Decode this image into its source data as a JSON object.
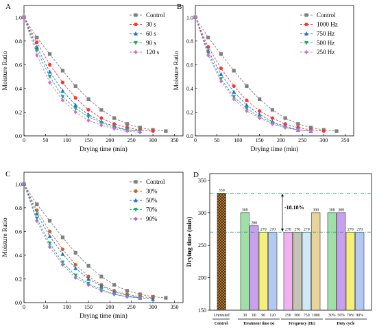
{
  "chart_data": [
    {
      "panel": "A",
      "type": "line",
      "xlabel": "Drying time (min)",
      "ylabel": "Moisture Ratio",
      "xlim": [
        0,
        370
      ],
      "ylim": [
        0,
        1.1
      ],
      "xticks": [
        "0",
        "50",
        "100",
        "150",
        "200",
        "250",
        "300",
        "350"
      ],
      "yticks": [
        "0.0",
        "0.2",
        "0.4",
        "0.6",
        "0.8",
        "1.0"
      ],
      "legend_position": "top-right",
      "series": [
        {
          "name": "Control",
          "color": "#7f7f7f",
          "marker": "square",
          "x": [
            0,
            30,
            60,
            90,
            120,
            150,
            180,
            210,
            240,
            270,
            300,
            330
          ],
          "y": [
            1.0,
            0.83,
            0.69,
            0.55,
            0.42,
            0.31,
            0.22,
            0.15,
            0.1,
            0.07,
            0.05,
            0.04
          ]
        },
        {
          "name": "30 s",
          "color": "#ff3030",
          "marker": "circle",
          "x": [
            0,
            30,
            60,
            90,
            120,
            150,
            180,
            210,
            240,
            270,
            300
          ],
          "y": [
            1.0,
            0.79,
            0.6,
            0.45,
            0.32,
            0.22,
            0.15,
            0.1,
            0.07,
            0.05,
            0.04
          ]
        },
        {
          "name": "60 s",
          "color": "#1f6fd0",
          "marker": "triangle",
          "x": [
            0,
            30,
            60,
            90,
            120,
            150,
            180,
            210,
            240,
            270
          ],
          "y": [
            1.0,
            0.75,
            0.54,
            0.38,
            0.26,
            0.18,
            0.12,
            0.08,
            0.05,
            0.04
          ]
        },
        {
          "name": "90 s",
          "color": "#1aab6a",
          "marker": "triangle-down",
          "x": [
            0,
            30,
            60,
            90,
            120,
            150,
            180,
            210,
            240,
            270
          ],
          "y": [
            1.0,
            0.72,
            0.5,
            0.33,
            0.23,
            0.16,
            0.11,
            0.07,
            0.05,
            0.04
          ]
        },
        {
          "name": "120 s",
          "color": "#d36bd8",
          "marker": "diamond",
          "x": [
            0,
            30,
            60,
            90,
            120,
            150,
            180,
            210,
            240,
            270
          ],
          "y": [
            1.0,
            0.68,
            0.45,
            0.3,
            0.2,
            0.13,
            0.09,
            0.06,
            0.04,
            0.03
          ]
        }
      ]
    },
    {
      "panel": "B",
      "type": "line",
      "xlabel": "Drying time (min)",
      "ylabel": "Moisture Ratio",
      "xlim": [
        0,
        370
      ],
      "ylim": [
        0,
        1.1
      ],
      "xticks": [
        "0",
        "50",
        "100",
        "150",
        "200",
        "250",
        "300",
        "350"
      ],
      "yticks": [
        "0.0",
        "0.2",
        "0.4",
        "0.6",
        "0.8",
        "1.0"
      ],
      "legend_position": "top-right",
      "series": [
        {
          "name": "Control",
          "color": "#7f7f7f",
          "marker": "square",
          "x": [
            0,
            30,
            60,
            90,
            120,
            150,
            180,
            210,
            240,
            270,
            300,
            330
          ],
          "y": [
            1.0,
            0.83,
            0.69,
            0.55,
            0.42,
            0.31,
            0.22,
            0.15,
            0.1,
            0.07,
            0.05,
            0.04
          ]
        },
        {
          "name": "1000 Hz",
          "color": "#ff3030",
          "marker": "circle",
          "x": [
            0,
            30,
            60,
            90,
            120,
            150,
            180,
            210,
            240,
            270,
            300
          ],
          "y": [
            1.0,
            0.75,
            0.57,
            0.42,
            0.3,
            0.21,
            0.15,
            0.1,
            0.07,
            0.05,
            0.04
          ]
        },
        {
          "name": "750 Hz",
          "color": "#1f6fd0",
          "marker": "triangle",
          "x": [
            0,
            30,
            60,
            90,
            120,
            150,
            180,
            210,
            240,
            270
          ],
          "y": [
            1.0,
            0.72,
            0.52,
            0.37,
            0.26,
            0.18,
            0.12,
            0.08,
            0.05,
            0.04
          ]
        },
        {
          "name": "500 Hz",
          "color": "#1aab6a",
          "marker": "triangle-down",
          "x": [
            0,
            30,
            60,
            90,
            120,
            150,
            180,
            210,
            240,
            270
          ],
          "y": [
            1.0,
            0.7,
            0.48,
            0.33,
            0.23,
            0.16,
            0.11,
            0.07,
            0.05,
            0.04
          ]
        },
        {
          "name": "250 Hz",
          "color": "#d36bd8",
          "marker": "diamond",
          "x": [
            0,
            30,
            60,
            90,
            120,
            150,
            180,
            210,
            240,
            270
          ],
          "y": [
            1.0,
            0.68,
            0.46,
            0.31,
            0.21,
            0.15,
            0.1,
            0.07,
            0.05,
            0.04
          ]
        }
      ]
    },
    {
      "panel": "C",
      "type": "line",
      "xlabel": "Drying time (min)",
      "ylabel": "Moisture Ratio",
      "xlim": [
        0,
        370
      ],
      "ylim": [
        0,
        1.1
      ],
      "xticks": [
        "0",
        "50",
        "100",
        "150",
        "200",
        "250",
        "300",
        "350"
      ],
      "yticks": [
        "0.0",
        "0.2",
        "0.4",
        "0.6",
        "0.8",
        "1.0"
      ],
      "legend_position": "top-right",
      "series": [
        {
          "name": "Control",
          "color": "#7f7f7f",
          "marker": "square",
          "x": [
            0,
            30,
            60,
            90,
            120,
            150,
            180,
            210,
            240,
            270,
            300,
            330
          ],
          "y": [
            1.0,
            0.83,
            0.69,
            0.55,
            0.42,
            0.31,
            0.22,
            0.15,
            0.1,
            0.07,
            0.05,
            0.04
          ]
        },
        {
          "name": "30%",
          "color": "#c8641e",
          "marker": "circle",
          "x": [
            0,
            30,
            60,
            90,
            120,
            150,
            180,
            210,
            240,
            270,
            300
          ],
          "y": [
            1.0,
            0.78,
            0.6,
            0.45,
            0.32,
            0.22,
            0.15,
            0.1,
            0.07,
            0.05,
            0.04
          ]
        },
        {
          "name": "50%",
          "color": "#1f6fd0",
          "marker": "triangle",
          "x": [
            0,
            30,
            60,
            90,
            120,
            150,
            180,
            210,
            240,
            270,
            300
          ],
          "y": [
            1.0,
            0.75,
            0.56,
            0.41,
            0.29,
            0.2,
            0.14,
            0.09,
            0.06,
            0.04,
            0.03
          ]
        },
        {
          "name": "70%",
          "color": "#1aab6a",
          "marker": "triangle-down",
          "x": [
            0,
            30,
            60,
            90,
            120,
            150,
            180,
            210,
            240,
            270
          ],
          "y": [
            1.0,
            0.71,
            0.5,
            0.34,
            0.23,
            0.16,
            0.11,
            0.07,
            0.05,
            0.04
          ]
        },
        {
          "name": "90%",
          "color": "#a06bd8",
          "marker": "diamond",
          "x": [
            0,
            30,
            60,
            90,
            120,
            150,
            180,
            210,
            240,
            270
          ],
          "y": [
            1.0,
            0.69,
            0.47,
            0.32,
            0.21,
            0.15,
            0.1,
            0.07,
            0.05,
            0.04
          ]
        }
      ]
    },
    {
      "panel": "D",
      "type": "bar",
      "ylabel": "Drying time (min)",
      "ylim": [
        150,
        360
      ],
      "yticks": [
        "150",
        "200",
        "250",
        "300",
        "350"
      ],
      "grid": false,
      "bars": [
        {
          "category": "Untreated",
          "value": 330,
          "label": "330",
          "color": "#c98a3a",
          "pattern": "hatch",
          "group": 0
        },
        {
          "category": "30",
          "value": 300,
          "label": "300",
          "color": "#9fe0a8",
          "group": 1
        },
        {
          "category": "60",
          "value": 280,
          "label": "280",
          "color": "#c9a0f0",
          "group": 1
        },
        {
          "category": "90",
          "value": 270,
          "label": "270",
          "color": "#f4f07a",
          "group": 1
        },
        {
          "category": "120",
          "value": 270,
          "label": "270",
          "color": "#b3c9f4",
          "group": 1
        },
        {
          "category": "250",
          "value": 270,
          "label": "270",
          "color": "#f2b2f0",
          "group": 2
        },
        {
          "category": "500",
          "value": 270,
          "label": "270",
          "color": "#c4c4b4",
          "group": 2
        },
        {
          "category": "750",
          "value": 270,
          "label": "270",
          "color": "#cfe9f7",
          "group": 2
        },
        {
          "category": "1000",
          "value": 300,
          "label": "300",
          "color": "#e8d49a",
          "group": 2
        },
        {
          "category": "30%",
          "value": 300,
          "label": "300",
          "color": "#9fe0a8",
          "group": 3
        },
        {
          "category": "50%",
          "value": 300,
          "label": "300",
          "color": "#c9a0f0",
          "group": 3
        },
        {
          "category": "70%",
          "value": 270,
          "label": "270",
          "color": "#f4f07a",
          "group": 3
        },
        {
          "category": "90%",
          "value": 270,
          "label": "270",
          "color": "#b3c9f4",
          "group": 3
        }
      ],
      "group_labels": [
        "Control",
        "Treatment time (s)",
        "Frequency (Hz)",
        "Duty cycle"
      ],
      "reference_lines": [
        330,
        270
      ],
      "annotation": "-18.18%"
    }
  ]
}
